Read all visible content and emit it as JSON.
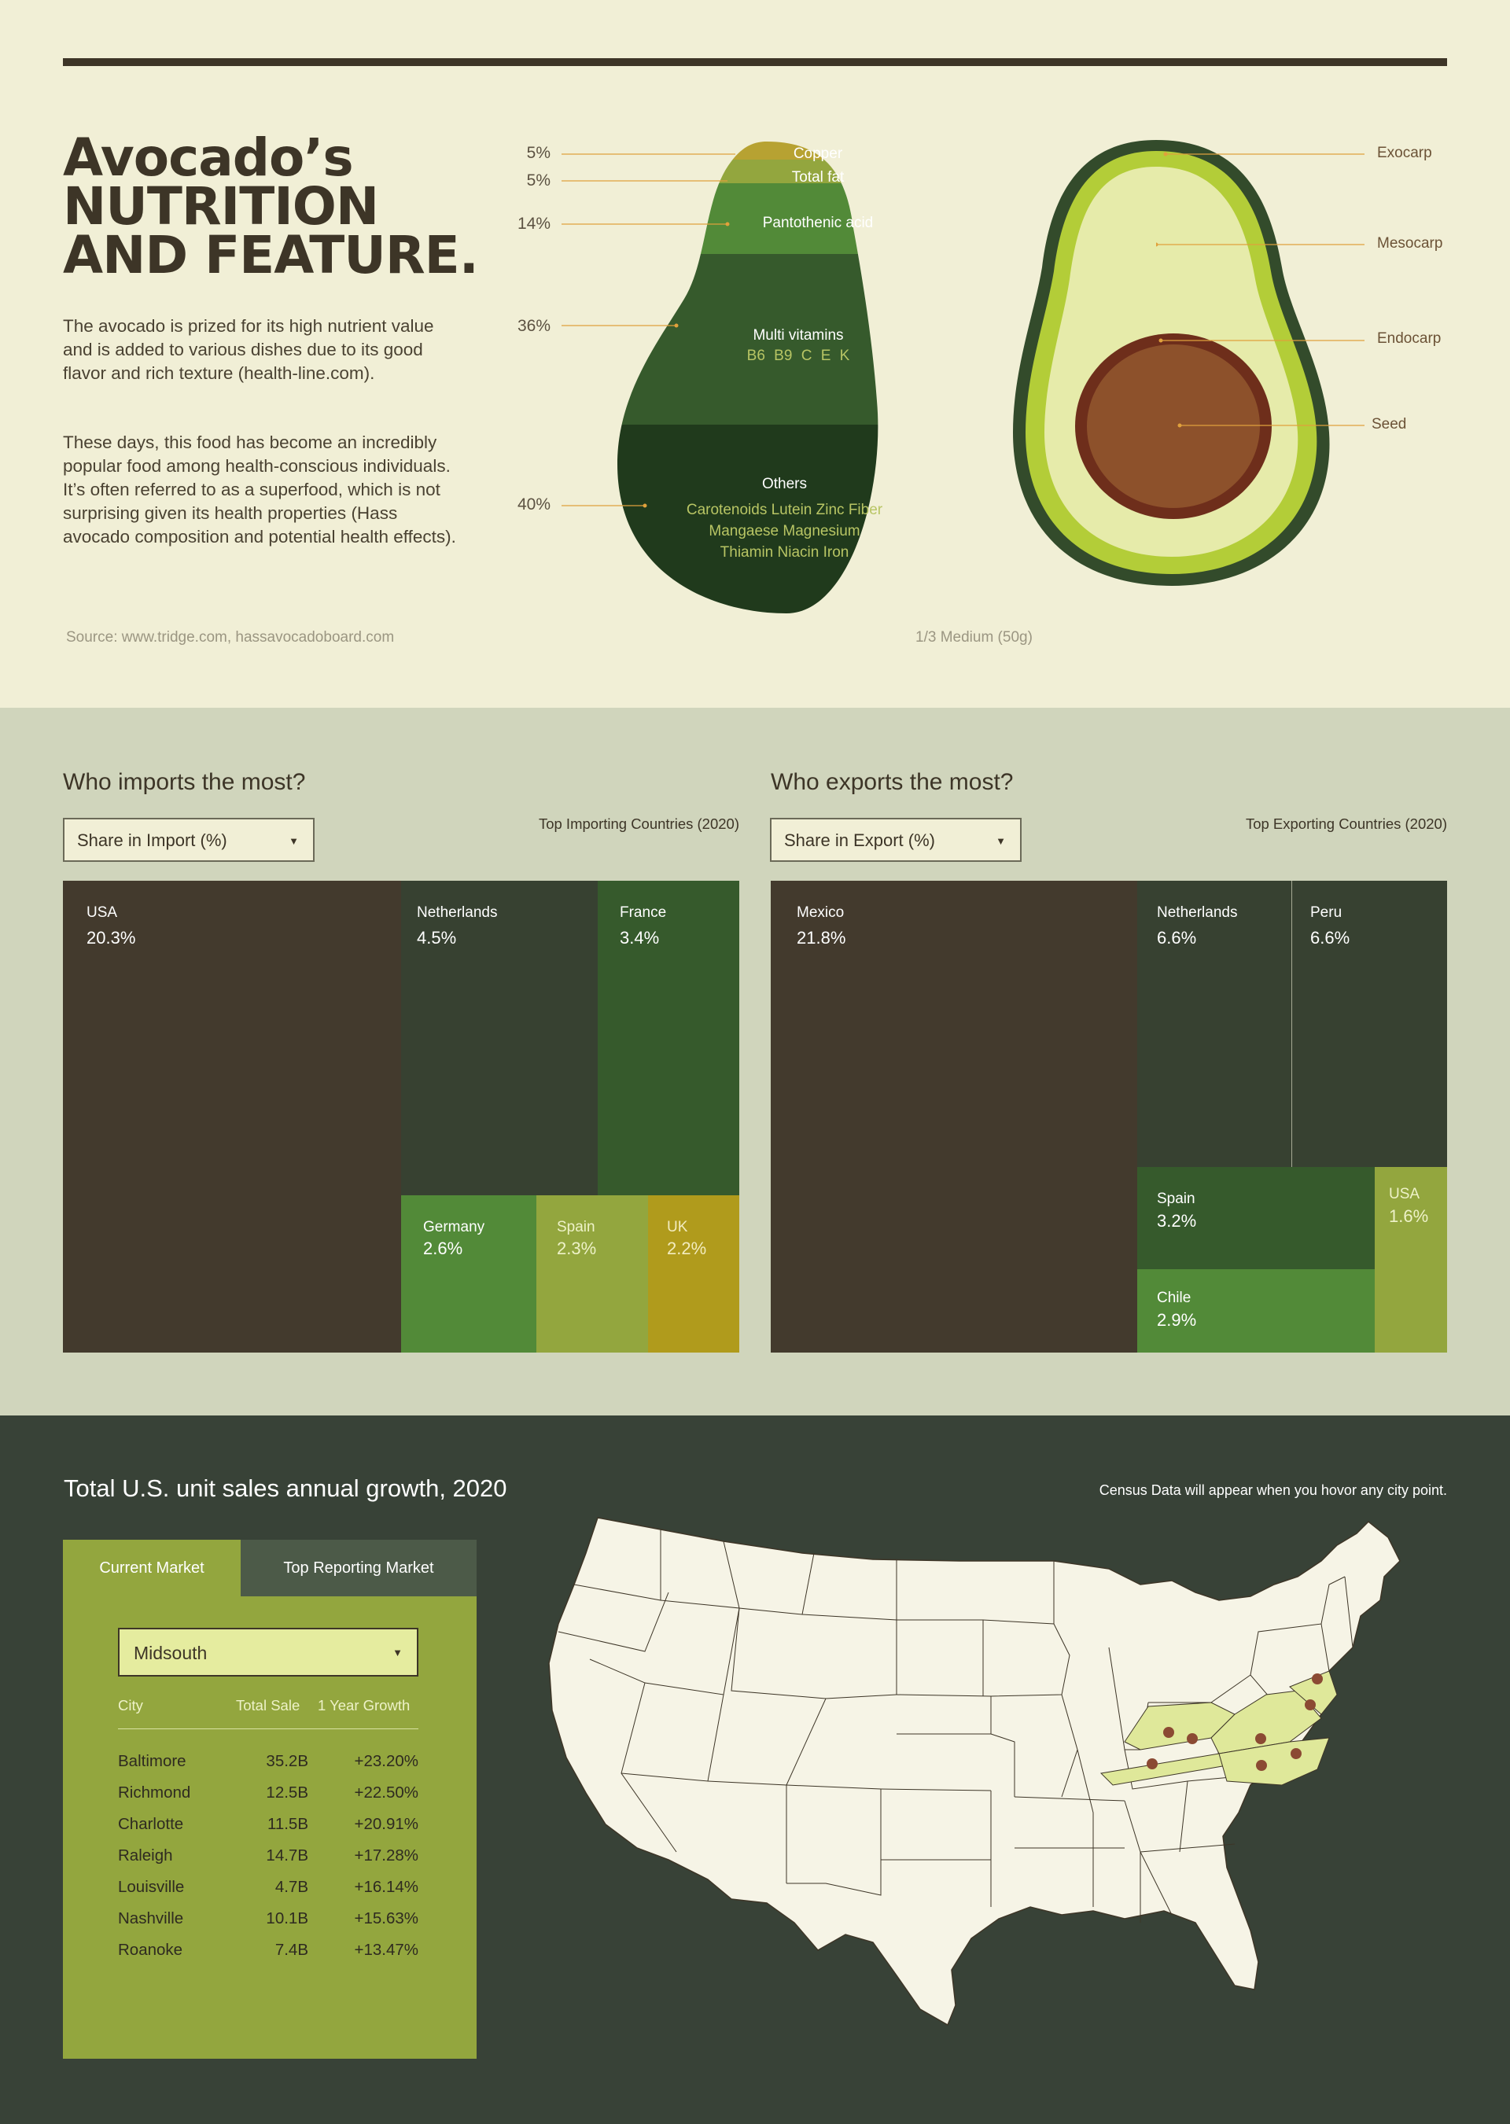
{
  "header": {
    "title_lines": [
      "Avocado’s",
      "Nutrition",
      "and Feature."
    ],
    "intro_paragraph_1": "The avocado is prized for its high nutrient value and is added to various dishes due to its good flavor and rich texture (health-line.com).",
    "intro_paragraph_2": "These days, this food has become an incredibly popular food among health-conscious individuals. It’s often referred to as a superfood, which is not surprising given its health properties (Hass avocado composition and potential health effects).",
    "source": "Source: www.tridge.com, hassavocadoboard.com",
    "serving": "1/3 Medium (50g)"
  },
  "nutrition": {
    "layers": [
      {
        "pct": "5%",
        "name": "Copper",
        "color": "#b7a232"
      },
      {
        "pct": "5%",
        "name": "Total fat",
        "color": "#93a63e"
      },
      {
        "pct": "14%",
        "name": "Pantothenic acid",
        "color": "#528a38"
      },
      {
        "pct": "36%",
        "name": "Multi vitamins",
        "detail": "B6  B9  C  E  K",
        "color": "#365a2c"
      },
      {
        "pct": "40%",
        "name": "Others",
        "detail_lines": [
          "Carotenoids  Lutein  Zinc  Fiber",
          "Mangaese  Magnesium",
          "Thiamin  Niacin  Iron"
        ],
        "color": "#203a1c"
      }
    ]
  },
  "anatomy": {
    "parts": [
      "Exocarp",
      "Mesocarp",
      "Endocarp",
      "Seed"
    ]
  },
  "imports": {
    "heading": "Who imports the most?",
    "select_value": "Share in Import (%)",
    "caption": "Top Importing Countries (2020)",
    "countries": [
      {
        "name": "USA",
        "share": "20.3%",
        "color": "#433a2d"
      },
      {
        "name": "Netherlands",
        "share": "4.5%",
        "color": "#374131"
      },
      {
        "name": "France",
        "share": "3.4%",
        "color": "#365a2c"
      },
      {
        "name": "Germany",
        "share": "2.6%",
        "color": "#528a38"
      },
      {
        "name": "Spain",
        "share": "2.3%",
        "color": "#93a63e"
      },
      {
        "name": "UK",
        "share": "2.2%",
        "color": "#b09b1c"
      }
    ]
  },
  "exports": {
    "heading": "Who exports the most?",
    "select_value": "Share in Export (%)",
    "caption": "Top Exporting Countries (2020)",
    "countries": [
      {
        "name": "Mexico",
        "share": "21.8%",
        "color": "#433a2d"
      },
      {
        "name": "Netherlands",
        "share": "6.6%",
        "color": "#374131"
      },
      {
        "name": "Peru",
        "share": "6.6%",
        "color": "#374131"
      },
      {
        "name": "Spain",
        "share": "3.2%",
        "color": "#365a2c"
      },
      {
        "name": "USA",
        "share": "1.6%",
        "color": "#93a63e"
      },
      {
        "name": "Chile",
        "share": "2.9%",
        "color": "#528a38"
      }
    ]
  },
  "sales": {
    "heading": "Total U.S. unit sales annual growth, 2020",
    "hint": "Census Data will appear when you hovor any city point.",
    "tabs": [
      "Current Market",
      "Top Reporting Market"
    ],
    "region": "Midsouth",
    "columns": [
      "City",
      "Total Sale",
      "1 Year Growth"
    ],
    "rows": [
      [
        "Baltimore",
        "35.2B",
        "+23.20%"
      ],
      [
        "Richmond",
        "12.5B",
        "+22.50%"
      ],
      [
        "Charlotte",
        "11.5B",
        "+20.91%"
      ],
      [
        "Raleigh",
        "14.7B",
        "+17.28%"
      ],
      [
        "Louisville",
        "4.7B",
        "+16.14%"
      ],
      [
        "Nashville",
        "10.1B",
        "+15.63%"
      ],
      [
        "Roanoke",
        "7.4B",
        "+13.47%"
      ]
    ]
  },
  "colors": {
    "background": "#f1efd6",
    "dark": "#3d3527",
    "olive": "#93a63e",
    "forest": "#384237",
    "highlight_state": "#dfe89a",
    "city_dot": "#8b4a33"
  }
}
